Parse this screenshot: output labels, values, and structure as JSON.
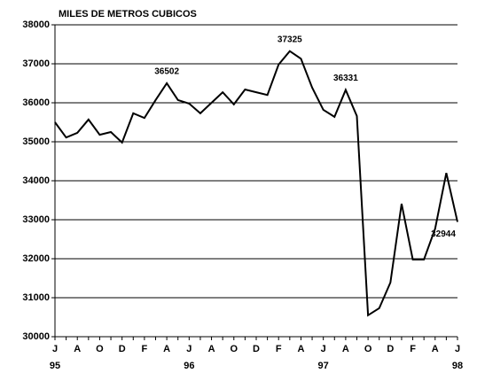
{
  "chart_data": {
    "type": "line",
    "title": "MILES DE METROS CUBICOS",
    "categories": [
      "J",
      null,
      "A",
      null,
      "O",
      null,
      "D",
      null,
      "F",
      null,
      "A",
      null,
      "J",
      null,
      "A",
      null,
      "O",
      null,
      "D",
      null,
      "F",
      null,
      "A",
      null,
      "J",
      null,
      "A",
      null,
      "O",
      null,
      "D",
      null,
      "F",
      null,
      "A",
      null,
      "J"
    ],
    "year_labels": [
      "95",
      "96",
      "97",
      "98"
    ],
    "values": [
      35500,
      35110,
      35230,
      35570,
      35180,
      35250,
      34980,
      35730,
      35610,
      36070,
      36502,
      36070,
      35980,
      35730,
      36000,
      36270,
      35960,
      36340,
      36270,
      36200,
      36980,
      37325,
      37130,
      36390,
      35820,
      35640,
      36331,
      35660,
      30550,
      30730,
      31390,
      33410,
      31980,
      31980,
      32770,
      34200,
      32944
    ],
    "value_labels": [
      null,
      null,
      null,
      null,
      null,
      null,
      null,
      null,
      null,
      null,
      "36502",
      null,
      null,
      null,
      null,
      null,
      null,
      null,
      null,
      null,
      null,
      "37325",
      null,
      null,
      null,
      null,
      "36331",
      null,
      null,
      null,
      null,
      null,
      null,
      null,
      null,
      null,
      "32944"
    ],
    "color": "#000000",
    "ylim": [
      30000,
      38000
    ],
    "yticks": [
      30000,
      31000,
      32000,
      33000,
      34000,
      35000,
      36000,
      37000,
      38000
    ],
    "grid": true
  }
}
